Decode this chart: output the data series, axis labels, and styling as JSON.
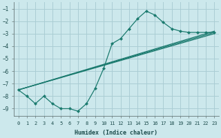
{
  "xlabel": "Humidex (Indice chaleur)",
  "background_color": "#cce8ec",
  "grid_color": "#aacdd4",
  "line_color": "#1a7a6e",
  "xlim": [
    -0.5,
    23.5
  ],
  "ylim": [
    -9.6,
    -0.5
  ],
  "yticks": [
    -1,
    -2,
    -3,
    -4,
    -5,
    -6,
    -7,
    -8,
    -9
  ],
  "xticks": [
    0,
    1,
    2,
    3,
    4,
    5,
    6,
    7,
    8,
    9,
    10,
    11,
    12,
    13,
    14,
    15,
    16,
    17,
    18,
    19,
    20,
    21,
    22,
    23
  ],
  "series_main": {
    "x": [
      0,
      1,
      2,
      3,
      4,
      5,
      6,
      7,
      8,
      9,
      10,
      11,
      12,
      13,
      14,
      15,
      16,
      17,
      18,
      19,
      20,
      21,
      22,
      23
    ],
    "y": [
      -7.5,
      -8.0,
      -8.6,
      -8.0,
      -8.6,
      -9.0,
      -9.0,
      -9.2,
      -8.6,
      -7.4,
      -5.8,
      -3.8,
      -3.4,
      -2.6,
      -1.8,
      -1.2,
      -1.5,
      -2.1,
      -2.6,
      -2.8,
      -2.9,
      -2.9,
      -2.9,
      -2.9
    ]
  },
  "series_straight": [
    {
      "x": [
        0,
        23
      ],
      "y": [
        -7.5,
        -2.8
      ]
    },
    {
      "x": [
        0,
        23
      ],
      "y": [
        -7.5,
        -2.9
      ]
    },
    {
      "x": [
        0,
        23
      ],
      "y": [
        -7.5,
        -3.0
      ]
    }
  ]
}
